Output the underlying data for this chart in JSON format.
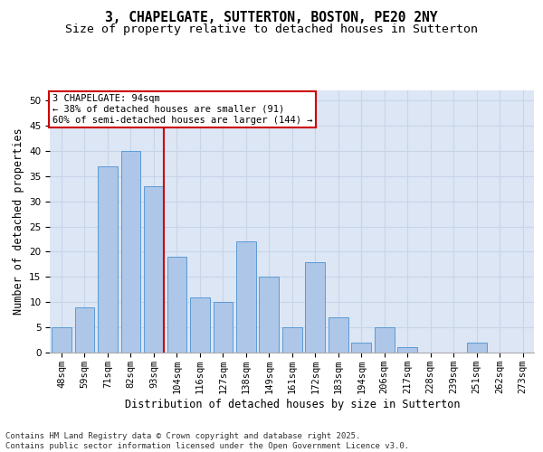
{
  "title": "3, CHAPELGATE, SUTTERTON, BOSTON, PE20 2NY",
  "subtitle": "Size of property relative to detached houses in Sutterton",
  "xlabel": "Distribution of detached houses by size in Sutterton",
  "ylabel": "Number of detached properties",
  "categories": [
    "48sqm",
    "59sqm",
    "71sqm",
    "82sqm",
    "93sqm",
    "104sqm",
    "116sqm",
    "127sqm",
    "138sqm",
    "149sqm",
    "161sqm",
    "172sqm",
    "183sqm",
    "194sqm",
    "206sqm",
    "217sqm",
    "228sqm",
    "239sqm",
    "251sqm",
    "262sqm",
    "273sqm"
  ],
  "values": [
    5,
    9,
    37,
    40,
    33,
    19,
    11,
    10,
    22,
    15,
    5,
    18,
    7,
    2,
    5,
    1,
    0,
    0,
    2,
    0,
    0
  ],
  "bar_color": "#aec6e8",
  "bar_edge_color": "#5b9bd5",
  "bar_edge_width": 0.7,
  "grid_color": "#c8d4e8",
  "background_color": "#dce6f5",
  "red_line_index": 4,
  "red_line_color": "#cc0000",
  "annotation_text": "3 CHAPELGATE: 94sqm\n← 38% of detached houses are smaller (91)\n60% of semi-detached houses are larger (144) →",
  "annotation_box_color": "#ffffff",
  "annotation_box_edge": "#cc0000",
  "ylim": [
    0,
    52
  ],
  "yticks": [
    0,
    5,
    10,
    15,
    20,
    25,
    30,
    35,
    40,
    45,
    50
  ],
  "footer_text": "Contains HM Land Registry data © Crown copyright and database right 2025.\nContains public sector information licensed under the Open Government Licence v3.0.",
  "title_fontsize": 10.5,
  "subtitle_fontsize": 9.5,
  "axis_label_fontsize": 8.5,
  "tick_fontsize": 7.5,
  "annotation_fontsize": 7.5,
  "footer_fontsize": 6.5
}
